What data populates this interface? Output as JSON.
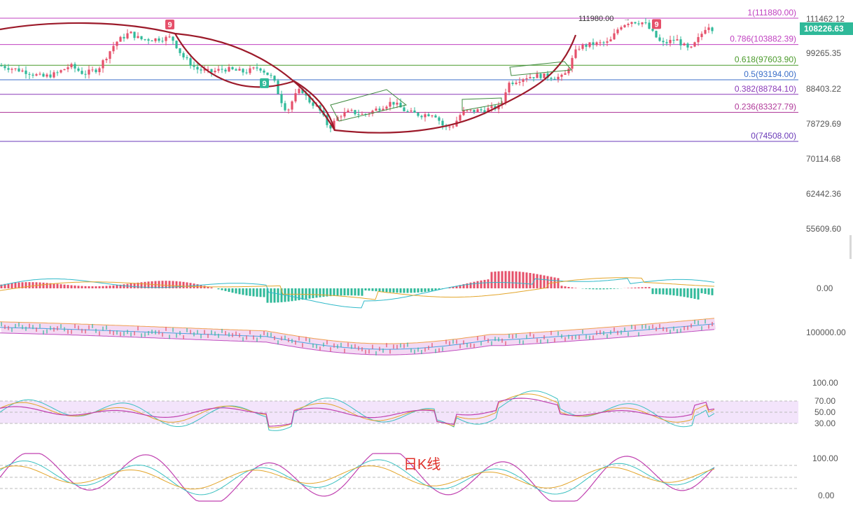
{
  "chart_data": [
    {
      "panel": "price",
      "type": "candlestick",
      "annotation": "日K线",
      "last_price": "108226.63",
      "high_label": "111980.00",
      "y_axis_ticks": [
        "111462.12",
        "99265.35",
        "88403.22",
        "78729.69",
        "70114.68",
        "62442.36",
        "55609.60"
      ],
      "fib_levels": [
        {
          "label": "1(111880.00)",
          "value": 111880.0,
          "color": "#c040c0"
        },
        {
          "label": "0.786(103882.39)",
          "value": 103882.39,
          "color": "#c040c0"
        },
        {
          "label": "0.618(97603.90)",
          "value": 97603.9,
          "color": "#4a9a2a"
        },
        {
          "label": "0.5(93194.00)",
          "value": 93194.0,
          "color": "#3a6ec8"
        },
        {
          "label": "0.382(88784.10)",
          "value": 88784.1,
          "color": "#8a3ab8"
        },
        {
          "label": "0.236(83327.79)",
          "value": 83327.79,
          "color": "#b03a9a"
        },
        {
          "label": "0(74508.00)",
          "value": 74508.0,
          "color": "#6a3ab8"
        }
      ],
      "td_markers": [
        {
          "label": "9",
          "kind": "sell",
          "bar": 48
        },
        {
          "label": "9",
          "kind": "buy",
          "bar": 75
        },
        {
          "label": "9",
          "kind": "sell",
          "bar": 187
        }
      ],
      "colors": {
        "up": "#e5506a",
        "down": "#2fb999",
        "arc": "#9c1a2a",
        "channel": "#3f8a3f"
      }
    },
    {
      "panel": "macd",
      "type": "bar+line",
      "y_axis_ticks": [
        "0.00"
      ]
    },
    {
      "panel": "bollinger",
      "type": "line",
      "y_axis_ticks": [
        "100000.00"
      ]
    },
    {
      "panel": "rsi",
      "type": "line",
      "y_axis_ticks": [
        "100.00",
        "70.00",
        "50.00",
        "30.00"
      ]
    },
    {
      "panel": "kdj",
      "type": "line",
      "y_axis_ticks": [
        "100.00",
        "0.00"
      ]
    }
  ]
}
